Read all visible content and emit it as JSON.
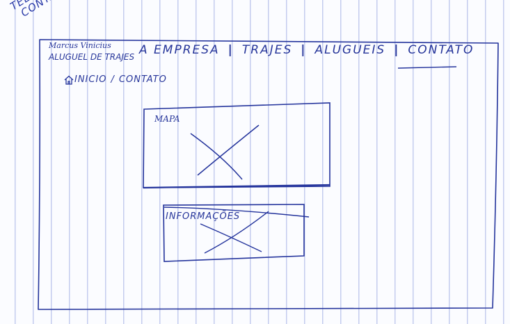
{
  "page_note": {
    "line1": "TELA",
    "line2": "CONTATO"
  },
  "brand": {
    "name": "Marcus Vinicius",
    "subtitle": "ALUGUEL DE TRAJES"
  },
  "nav": {
    "items": [
      {
        "label": "A EMPRESA"
      },
      {
        "label": "TRAJES"
      },
      {
        "label": "ALUGUEIS"
      },
      {
        "label": "CONTATO"
      }
    ],
    "separator": "|"
  },
  "breadcrumb": {
    "home": "INICIO",
    "separator": "/",
    "current": "CONTATO"
  },
  "map_box": {
    "label": "MAPA"
  },
  "info_box": {
    "label": "INFORMAÇÕES"
  },
  "colors": {
    "ink": "#26359a",
    "grid_line": "#96a5e1",
    "paper": "#fbfcff"
  }
}
